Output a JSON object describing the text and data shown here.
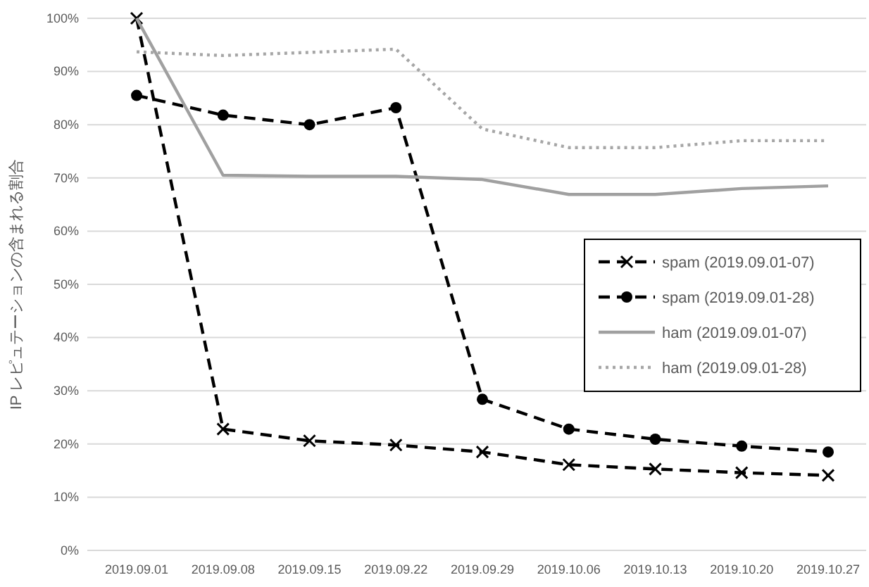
{
  "chart_data": {
    "type": "line",
    "ylabel": "IP レピュテーションの含まれる割合",
    "categories": [
      "2019.09.01",
      "2019.09.08",
      "2019.09.15",
      "2019.09.22",
      "2019.09.29",
      "2019.10.06",
      "2019.10.13",
      "2019.10.20",
      "2019.10.27"
    ],
    "series": [
      {
        "name": "spam (2019.09.01-07)",
        "color": "#000000",
        "marker": "cross",
        "line_style": "dashed",
        "values": [
          100,
          22.8,
          20.6,
          19.8,
          18.5,
          16.1,
          15.3,
          14.6,
          14.1
        ]
      },
      {
        "name": "spam (2019.09.01-28)",
        "color": "#000000",
        "marker": "circle",
        "line_style": "dashed",
        "values": [
          85.5,
          81.8,
          80,
          83.2,
          28.4,
          22.8,
          20.9,
          19.6,
          18.5
        ]
      },
      {
        "name": "ham (2019.09.01-07)",
        "color": "#a0a0a0",
        "marker": "none",
        "line_style": "solid",
        "values": [
          100,
          70.5,
          70.3,
          70.3,
          69.7,
          66.9,
          66.9,
          68,
          68.5
        ]
      },
      {
        "name": "ham (2019.09.01-28)",
        "color": "#a6a6a6",
        "marker": "none",
        "line_style": "dotted",
        "values": [
          93.7,
          93,
          93.6,
          94.2,
          79.2,
          75.7,
          75.7,
          77,
          77
        ]
      }
    ],
    "ylim": [
      0,
      100
    ],
    "yticks": [
      {
        "value": 0,
        "label": "0%"
      },
      {
        "value": 10,
        "label": "10%"
      },
      {
        "value": 20,
        "label": "20%"
      },
      {
        "value": 30,
        "label": "30%"
      },
      {
        "value": 40,
        "label": "40%"
      },
      {
        "value": 50,
        "label": "50%"
      },
      {
        "value": 60,
        "label": "60%"
      },
      {
        "value": 70,
        "label": "70%"
      },
      {
        "value": 80,
        "label": "80%"
      },
      {
        "value": 90,
        "label": "90%"
      },
      {
        "value": 100,
        "label": "100%"
      }
    ],
    "grid": "y",
    "legend": "right"
  }
}
